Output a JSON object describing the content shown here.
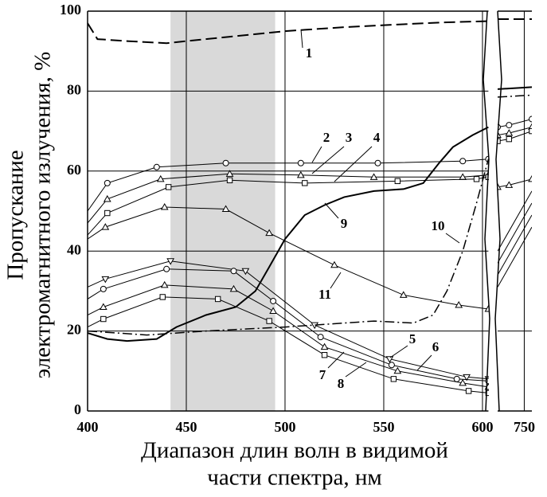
{
  "chart_data": [
    {
      "type": "line",
      "xlabel": [
        "Диапазон длин волн в видимой",
        "части спектра, нм"
      ],
      "ylabel": [
        "Пропускание",
        "электромагнитного излучения, %"
      ],
      "xlim": [
        400,
        603
      ],
      "ylim": [
        0,
        100
      ],
      "xticks": [
        400,
        450,
        500,
        550,
        600
      ],
      "yticks": [
        0,
        20,
        40,
        60,
        80,
        100
      ],
      "grid": true,
      "shaded_band": [
        442,
        495
      ],
      "shade_color": "#d9d9d9",
      "series": [
        {
          "name": "1",
          "color": "#000",
          "dash": "dashed",
          "linewidth": 2,
          "marker": "none",
          "x": [
            400,
            405,
            420,
            440,
            450,
            470,
            500,
            530,
            550,
            580,
            603
          ],
          "values": [
            97,
            93,
            92.5,
            92,
            92.5,
            93.5,
            95,
            96,
            96.5,
            97.2,
            97.5
          ]
        },
        {
          "name": "2",
          "color": "#000",
          "dash": "solid",
          "linewidth": 1,
          "marker": "circle",
          "x": [
            400,
            410,
            435,
            470,
            508,
            547,
            590,
            603
          ],
          "values": [
            50,
            57,
            61,
            62,
            62,
            62,
            62.5,
            63
          ]
        },
        {
          "name": "3",
          "color": "#000",
          "dash": "solid",
          "linewidth": 1,
          "marker": "triangle",
          "x": [
            400,
            410,
            437,
            472,
            508,
            545,
            590,
            603
          ],
          "values": [
            47,
            53,
            58,
            59.3,
            59,
            58.5,
            58.5,
            59
          ]
        },
        {
          "name": "4",
          "color": "#000",
          "dash": "solid",
          "linewidth": 1,
          "marker": "square",
          "x": [
            400,
            410,
            441,
            472,
            510,
            557,
            597,
            603
          ],
          "values": [
            44,
            49.5,
            56,
            57.7,
            57,
            57.5,
            58,
            58.5
          ]
        },
        {
          "name": "5",
          "color": "#000",
          "dash": "solid",
          "linewidth": 1,
          "marker": "triangle-down",
          "x": [
            400,
            409,
            442,
            480,
            515,
            553,
            592,
            603
          ],
          "values": [
            31,
            33,
            37.5,
            35,
            21.5,
            13,
            8.5,
            8
          ]
        },
        {
          "name": "6",
          "color": "#000",
          "dash": "solid",
          "linewidth": 1,
          "marker": "circle",
          "x": [
            400,
            408,
            440,
            474,
            494,
            518,
            554,
            587,
            603
          ],
          "values": [
            28,
            30.5,
            35.5,
            35,
            27.5,
            18.5,
            11.5,
            8,
            7.5
          ]
        },
        {
          "name": "7",
          "color": "#000",
          "dash": "solid",
          "linewidth": 1,
          "marker": "triangle",
          "x": [
            400,
            408,
            439,
            474,
            494,
            520,
            557,
            590,
            603
          ],
          "values": [
            24,
            26,
            31.5,
            30.5,
            25,
            16,
            10,
            7,
            6
          ]
        },
        {
          "name": "8",
          "color": "#000",
          "dash": "solid",
          "linewidth": 1,
          "marker": "square",
          "x": [
            400,
            408,
            438,
            466,
            492,
            520,
            555,
            593,
            603
          ],
          "values": [
            21,
            23,
            28.5,
            28,
            22.5,
            14,
            8,
            5,
            4.5
          ]
        },
        {
          "name": "9",
          "color": "#000",
          "dash": "solid",
          "linewidth": 2,
          "marker": "none",
          "x": [
            400,
            410,
            420,
            435,
            445,
            460,
            475,
            485,
            492,
            500,
            510,
            520,
            530,
            545,
            560,
            570,
            578,
            585,
            595,
            603
          ],
          "values": [
            19.5,
            18,
            17.5,
            18,
            21,
            24,
            26,
            30,
            36,
            43,
            49,
            51.5,
            53.5,
            55,
            55.5,
            57,
            62,
            66,
            69,
            71
          ]
        },
        {
          "name": "10",
          "color": "#000",
          "dash": "dashdot",
          "linewidth": 1.5,
          "marker": "none",
          "x": [
            400,
            430,
            460,
            500,
            530,
            545,
            565,
            575,
            582,
            590,
            597,
            603
          ],
          "values": [
            20,
            19,
            20,
            21,
            22,
            22.5,
            22,
            24,
            30,
            40,
            52,
            63
          ]
        },
        {
          "name": "11",
          "color": "#000",
          "dash": "solid",
          "linewidth": 1,
          "marker": "triangle",
          "x": [
            400,
            409,
            439,
            470,
            492,
            525,
            560,
            588,
            603
          ],
          "values": [
            43,
            46,
            51,
            50.5,
            44.5,
            36.5,
            29,
            26.5,
            25.5
          ]
        }
      ]
    },
    {
      "type": "line",
      "xlim": [
        715,
        760
      ],
      "ylim": [
        0,
        100
      ],
      "xticks": [
        750
      ],
      "yticks": [
        20
      ],
      "grid": true,
      "series": [
        {
          "color": "#000",
          "dash": "dashed",
          "linewidth": 2,
          "marker": "none",
          "x": [
            715,
            760
          ],
          "values": [
            98,
            98
          ]
        },
        {
          "color": "#000",
          "dash": "solid",
          "linewidth": 1,
          "marker": "circle",
          "x": [
            715,
            730,
            760
          ],
          "values": [
            71,
            71.5,
            73
          ]
        },
        {
          "color": "#000",
          "dash": "solid",
          "linewidth": 1,
          "marker": "triangle",
          "x": [
            715,
            730,
            760
          ],
          "values": [
            69,
            69.5,
            71
          ]
        },
        {
          "color": "#000",
          "dash": "solid",
          "linewidth": 1,
          "marker": "square",
          "x": [
            715,
            730,
            760
          ],
          "values": [
            67.5,
            68,
            70
          ]
        },
        {
          "color": "#000",
          "dash": "solid",
          "linewidth": 1,
          "marker": "none",
          "x": [
            715,
            760
          ],
          "values": [
            40,
            55
          ]
        },
        {
          "color": "#000",
          "dash": "solid",
          "linewidth": 1,
          "marker": "none",
          "x": [
            715,
            760
          ],
          "values": [
            37,
            52
          ]
        },
        {
          "color": "#000",
          "dash": "solid",
          "linewidth": 1,
          "marker": "none",
          "x": [
            715,
            760
          ],
          "values": [
            34,
            49
          ]
        },
        {
          "color": "#000",
          "dash": "solid",
          "linewidth": 1,
          "marker": "none",
          "x": [
            715,
            760
          ],
          "values": [
            31,
            46
          ]
        },
        {
          "color": "#000",
          "dash": "solid",
          "linewidth": 2,
          "marker": "none",
          "x": [
            715,
            760
          ],
          "values": [
            80.5,
            81
          ]
        },
        {
          "color": "#000",
          "dash": "dashdot",
          "linewidth": 1.5,
          "marker": "none",
          "x": [
            715,
            760
          ],
          "values": [
            78.5,
            79
          ]
        },
        {
          "color": "#000",
          "dash": "solid",
          "linewidth": 1,
          "marker": "triangle",
          "x": [
            715,
            730,
            760
          ],
          "values": [
            56,
            56.5,
            58
          ]
        }
      ]
    }
  ]
}
